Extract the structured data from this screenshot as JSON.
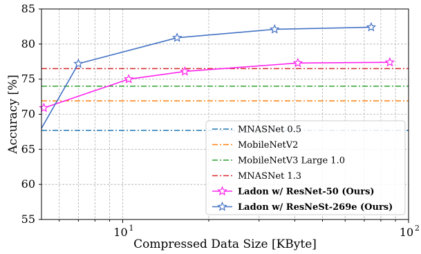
{
  "chart_data": {
    "type": "line",
    "xlabel": "Compressed Data Size [KByte]",
    "ylabel": "Accuracy [%]",
    "x_scale": "log",
    "xlim": [
      5.2,
      100
    ],
    "ylim": [
      55,
      85
    ],
    "x_major_ticks": [
      {
        "value": 10,
        "base": "10",
        "exp": "1"
      },
      {
        "value": 100,
        "base": "10",
        "exp": "2"
      }
    ],
    "y_ticks": [
      55,
      60,
      65,
      70,
      75,
      80,
      85
    ],
    "grid": true,
    "legend_position": "lower-right",
    "baselines": [
      {
        "name": "MNASNet 0.5",
        "value": 67.7,
        "color": "#1f77b4"
      },
      {
        "name": "MobileNetV2",
        "value": 71.9,
        "color": "#ff7f0e"
      },
      {
        "name": "MobileNetV3 Large 1.0",
        "value": 74.0,
        "color": "#2ca02c"
      },
      {
        "name": "MNASNet 1.3",
        "value": 76.5,
        "color": "#d62728"
      }
    ],
    "series": [
      {
        "name": "Ladon w/ ResNet-50 (Ours)",
        "color": "#ff22ee",
        "x": [
          5.3,
          10.5,
          16.5,
          41,
          86
        ],
        "y": [
          70.9,
          75.0,
          76.1,
          77.3,
          77.4
        ],
        "line_start": [
          5.2,
          71.0
        ]
      },
      {
        "name": "Ladon w/ ResNeSt-269e (Ours)",
        "color": "#4472c4",
        "x": [
          7.0,
          15.5,
          34,
          74
        ],
        "y": [
          77.2,
          80.9,
          82.1,
          82.4
        ],
        "line_start": [
          5.2,
          68.0
        ]
      }
    ]
  }
}
